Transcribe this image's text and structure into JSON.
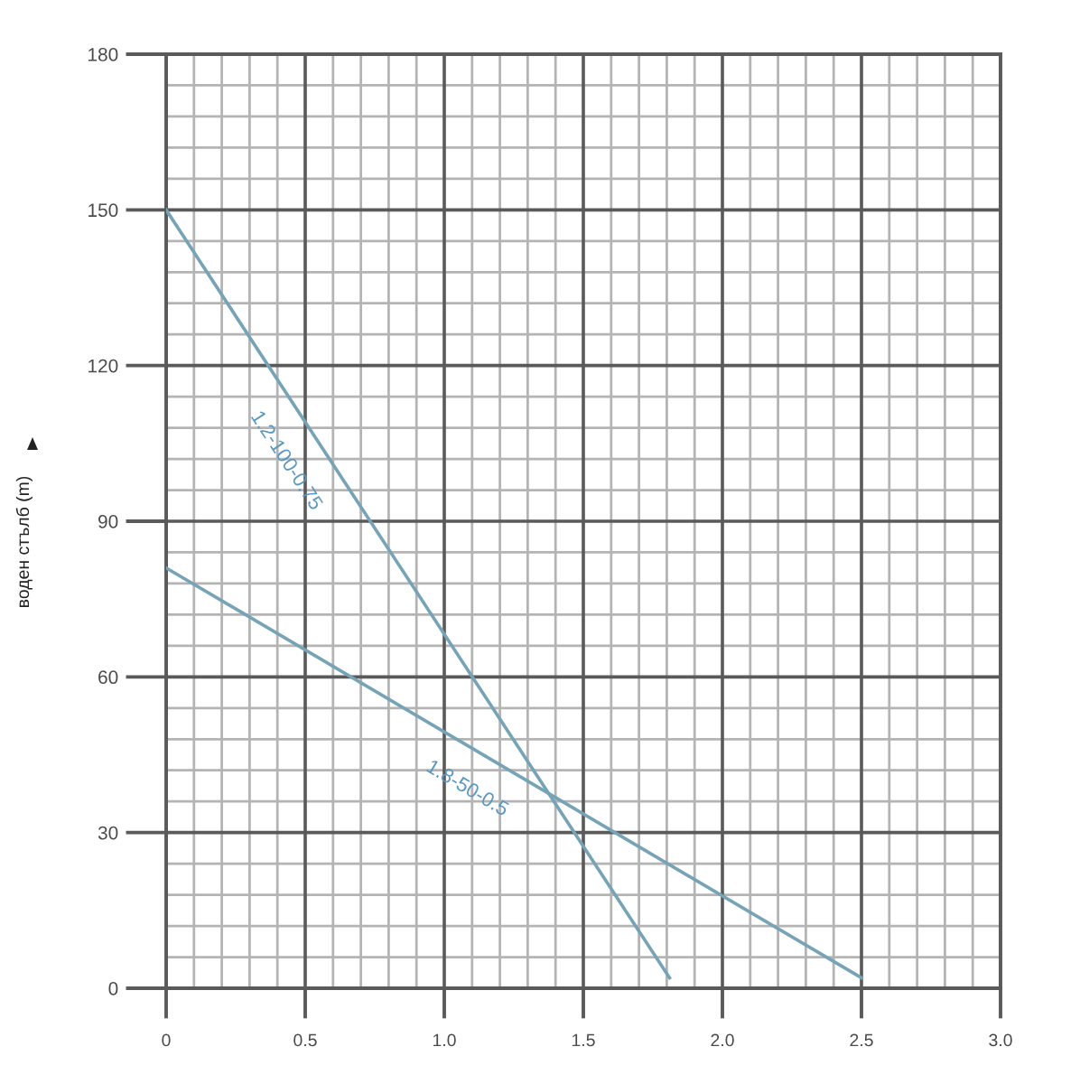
{
  "chart_data": {
    "type": "line",
    "ylabel": "воден стълб (m)",
    "series": [
      {
        "name": "1.2-100-0.75",
        "color": "#76a3b6",
        "x": [
          0,
          1.81
        ],
        "values": [
          150,
          2
        ]
      },
      {
        "name": "1.8-50-0.5",
        "color": "#76a3b6",
        "x": [
          0,
          2.5
        ],
        "values": [
          81,
          2
        ]
      }
    ],
    "xlim": [
      0,
      3
    ],
    "ylim": [
      0,
      180
    ],
    "xticks": [
      0,
      0.5,
      {
        "value": 1,
        "label": "1.0"
      },
      1.5,
      {
        "value": 2,
        "label": "2.0"
      },
      2.5,
      {
        "value": 3,
        "label": "3.0"
      }
    ],
    "yticks": [
      0,
      30,
      60,
      90,
      120,
      150,
      180
    ],
    "grid": true,
    "line_style": "solid"
  }
}
